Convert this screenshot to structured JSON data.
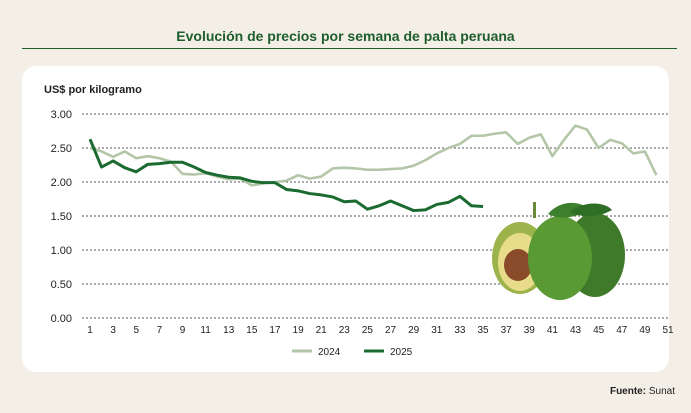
{
  "chart_data": {
    "type": "line",
    "title": "Evolución de precios por semana de palta peruana",
    "ylabel": "US$  por kilogramo",
    "xlabel": "",
    "ylim": [
      0,
      3
    ],
    "yticks": [
      "0.00",
      "0.50",
      "1.00",
      "1.50",
      "2.00",
      "2.50",
      "3.00"
    ],
    "xticks": [
      "1",
      "3",
      "5",
      "7",
      "9",
      "11",
      "13",
      "15",
      "17",
      "19",
      "21",
      "23",
      "25",
      "27",
      "29",
      "31",
      "33",
      "35",
      "37",
      "39",
      "41",
      "43",
      "45",
      "47",
      "49",
      "51"
    ],
    "xlim": [
      1,
      51
    ],
    "grid": true,
    "legend_position": "bottom",
    "series": [
      {
        "name": "2024",
        "color": "#b4c6a8",
        "values": [
          2.5,
          2.45,
          2.37,
          2.45,
          2.35,
          2.38,
          2.35,
          2.3,
          2.12,
          2.11,
          2.13,
          2.08,
          2.04,
          2.05,
          1.95,
          1.98,
          2.0,
          2.02,
          2.1,
          2.05,
          2.08,
          2.2,
          2.21,
          2.2,
          2.18,
          2.18,
          2.19,
          2.2,
          2.24,
          2.32,
          2.42,
          2.5,
          2.56,
          2.68,
          2.68,
          2.71,
          2.73,
          2.56,
          2.65,
          2.7,
          2.38,
          2.62,
          2.83,
          2.77,
          2.5,
          2.62,
          2.57,
          2.42,
          2.45,
          2.1
        ]
      },
      {
        "name": "2025",
        "color": "#1b6b30",
        "values": [
          2.63,
          2.22,
          2.31,
          2.21,
          2.15,
          2.26,
          2.27,
          2.29,
          2.29,
          2.22,
          2.14,
          2.1,
          2.07,
          2.06,
          2.01,
          1.99,
          1.99,
          1.89,
          1.87,
          1.83,
          1.81,
          1.78,
          1.71,
          1.72,
          1.6,
          1.65,
          1.72,
          1.65,
          1.58,
          1.59,
          1.67,
          1.7,
          1.79,
          1.65,
          1.64
        ]
      }
    ]
  },
  "source_label": "Fuente:",
  "source_value": "Sunat"
}
